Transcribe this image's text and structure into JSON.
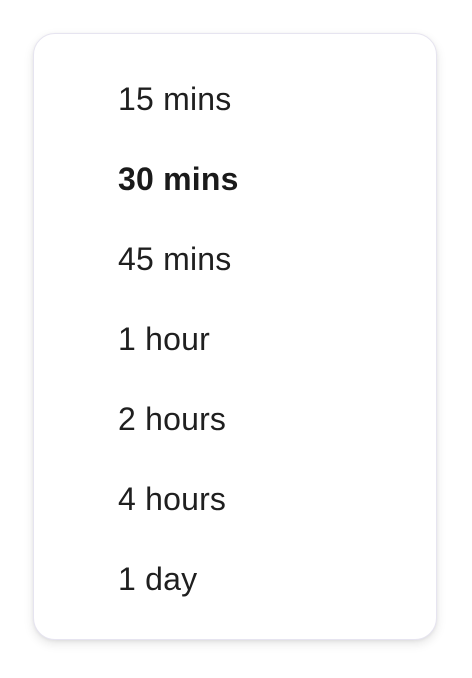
{
  "duration_menu": {
    "selected_index": 1,
    "options": [
      {
        "label": "15 mins"
      },
      {
        "label": "30 mins"
      },
      {
        "label": "45 mins"
      },
      {
        "label": "1 hour"
      },
      {
        "label": "2 hours"
      },
      {
        "label": "4 hours"
      },
      {
        "label": "1 day"
      }
    ]
  }
}
